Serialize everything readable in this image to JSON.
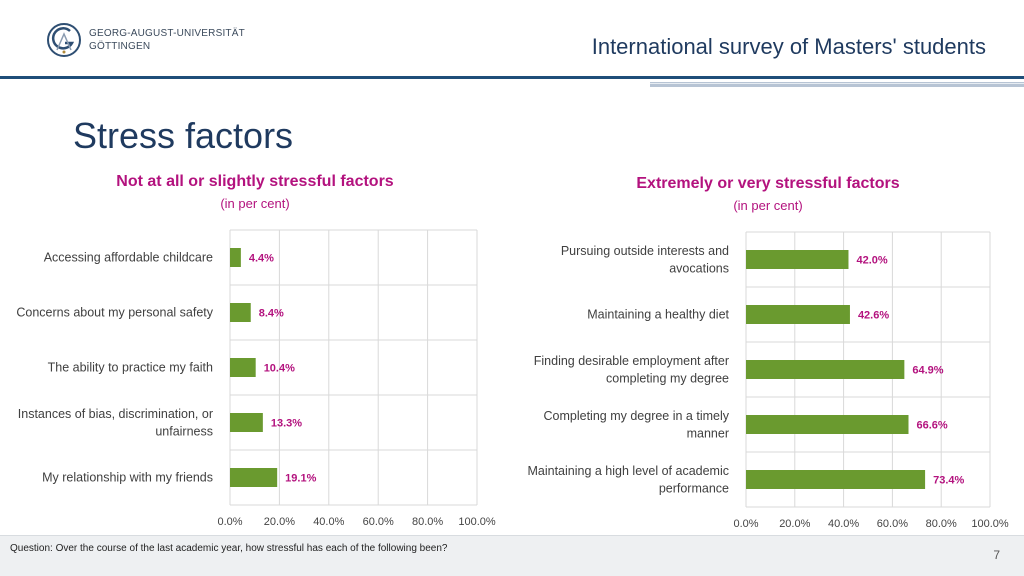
{
  "header": {
    "university_line1": "GEORG-AUGUST-UNIVERSITÄT",
    "university_line2": "GÖTTINGEN",
    "survey_title": "International survey of Masters' students"
  },
  "page_title": "Stress factors",
  "footer": {
    "question": "Question: Over the course of the last academic year, how stressful has each of the following been?",
    "page_number": "7"
  },
  "colors": {
    "bar": "#6a9a2f",
    "label": "#b3127e",
    "grid": "#d9d9d9"
  },
  "chart_data": [
    {
      "type": "bar",
      "orientation": "horizontal",
      "title": "Not at all or slightly stressful factors",
      "subtitle": "(in per cent)",
      "categories": [
        [
          "Accessing affordable childcare"
        ],
        [
          "Concerns about my personal safety"
        ],
        [
          "The ability to practice my faith"
        ],
        [
          "Instances of bias, discrimination, or",
          "unfairness"
        ],
        [
          "My relationship with my friends"
        ]
      ],
      "values": [
        4.4,
        8.4,
        10.4,
        13.3,
        19.1
      ],
      "value_labels": [
        "4.4%",
        "8.4%",
        "10.4%",
        "13.3%",
        "19.1%"
      ],
      "xlim": [
        0,
        100
      ],
      "xticks": [
        "0.0%",
        "20.0%",
        "40.0%",
        "60.0%",
        "80.0%",
        "100.0%"
      ],
      "grid": true
    },
    {
      "type": "bar",
      "orientation": "horizontal",
      "title": "Extremely or very stressful factors",
      "subtitle": "(in per cent)",
      "categories": [
        [
          "Pursuing outside interests and",
          "avocations"
        ],
        [
          "Maintaining a healthy diet"
        ],
        [
          "Finding desirable employment after",
          "completing my degree"
        ],
        [
          "Completing my degree in a timely",
          "manner"
        ],
        [
          "Maintaining a high level of academic",
          "performance"
        ]
      ],
      "values": [
        42.0,
        42.6,
        64.9,
        66.6,
        73.4
      ],
      "value_labels": [
        "42.0%",
        "42.6%",
        "64.9%",
        "66.6%",
        "73.4%"
      ],
      "xlim": [
        0,
        100
      ],
      "xticks": [
        "0.0%",
        "20.0%",
        "40.0%",
        "60.0%",
        "80.0%",
        "100.0%"
      ],
      "grid": true
    }
  ]
}
